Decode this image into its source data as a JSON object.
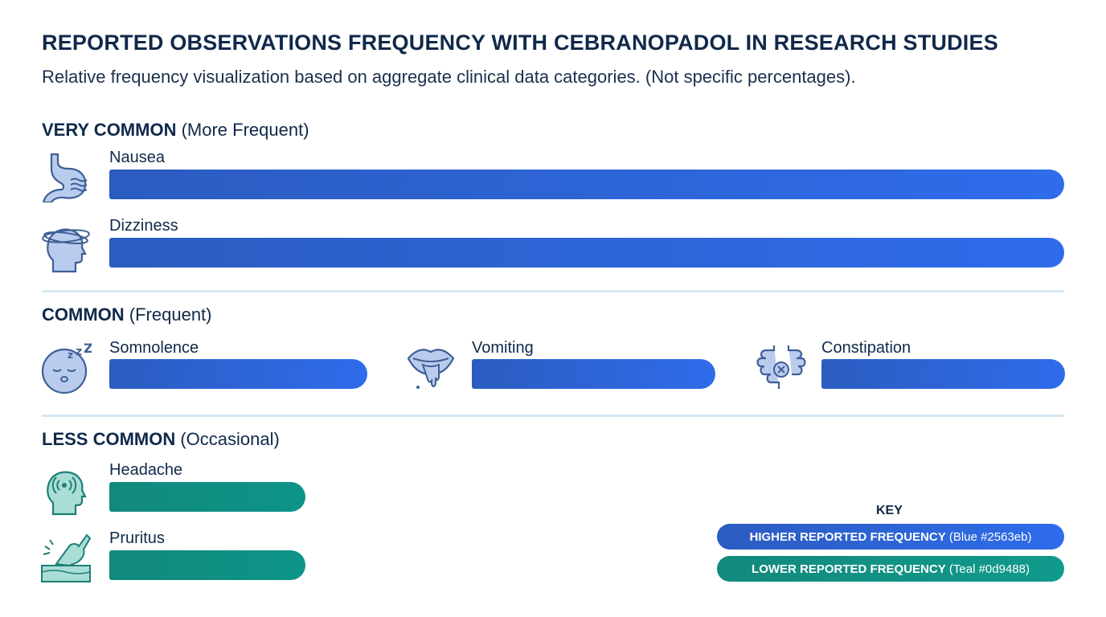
{
  "chart_data": {
    "type": "bar",
    "orientation": "horizontal",
    "title": "REPORTED OBSERVATIONS FREQUENCY WITH CEBRANOPADOL IN RESEARCH STUDIES",
    "subtitle": "Relative frequency visualization based on aggregate clinical data categories. (Not specific percentages).",
    "sections": [
      {
        "heading": "VERY COMMON",
        "note": "(More Frequent)",
        "color": "#2563eb",
        "items": [
          {
            "label": "Nausea",
            "value": 1.0,
            "icon": "stomach-icon"
          },
          {
            "label": "Dizziness",
            "value": 1.0,
            "icon": "dizzy-head-icon"
          }
        ]
      },
      {
        "heading": "COMMON",
        "note": "(Frequent)",
        "color": "#2563eb",
        "items": [
          {
            "label": "Somnolence",
            "value": 0.27,
            "icon": "sleepy-face-icon"
          },
          {
            "label": "Vomiting",
            "value": 0.255,
            "icon": "mouth-icon"
          },
          {
            "label": "Constipation",
            "value": 0.255,
            "icon": "intestine-icon"
          }
        ]
      },
      {
        "heading": "LESS COMMON",
        "note": "(Occasional)",
        "color": "#0d9488",
        "items": [
          {
            "label": "Headache",
            "value": 0.205,
            "icon": "headache-icon"
          },
          {
            "label": "Pruritus",
            "value": 0.205,
            "icon": "itchy-skin-icon"
          }
        ]
      }
    ],
    "legend": {
      "title": "KEY",
      "placement": "bottom-right",
      "entries": [
        {
          "bold": "HIGHER REPORTED FREQUENCY",
          "note": "(Blue #2563eb)",
          "color": "#2563eb"
        },
        {
          "bold": "LOWER REPORTED FREQUENCY",
          "note": "(Teal #0d9488)",
          "color": "#0d9488"
        }
      ]
    }
  }
}
